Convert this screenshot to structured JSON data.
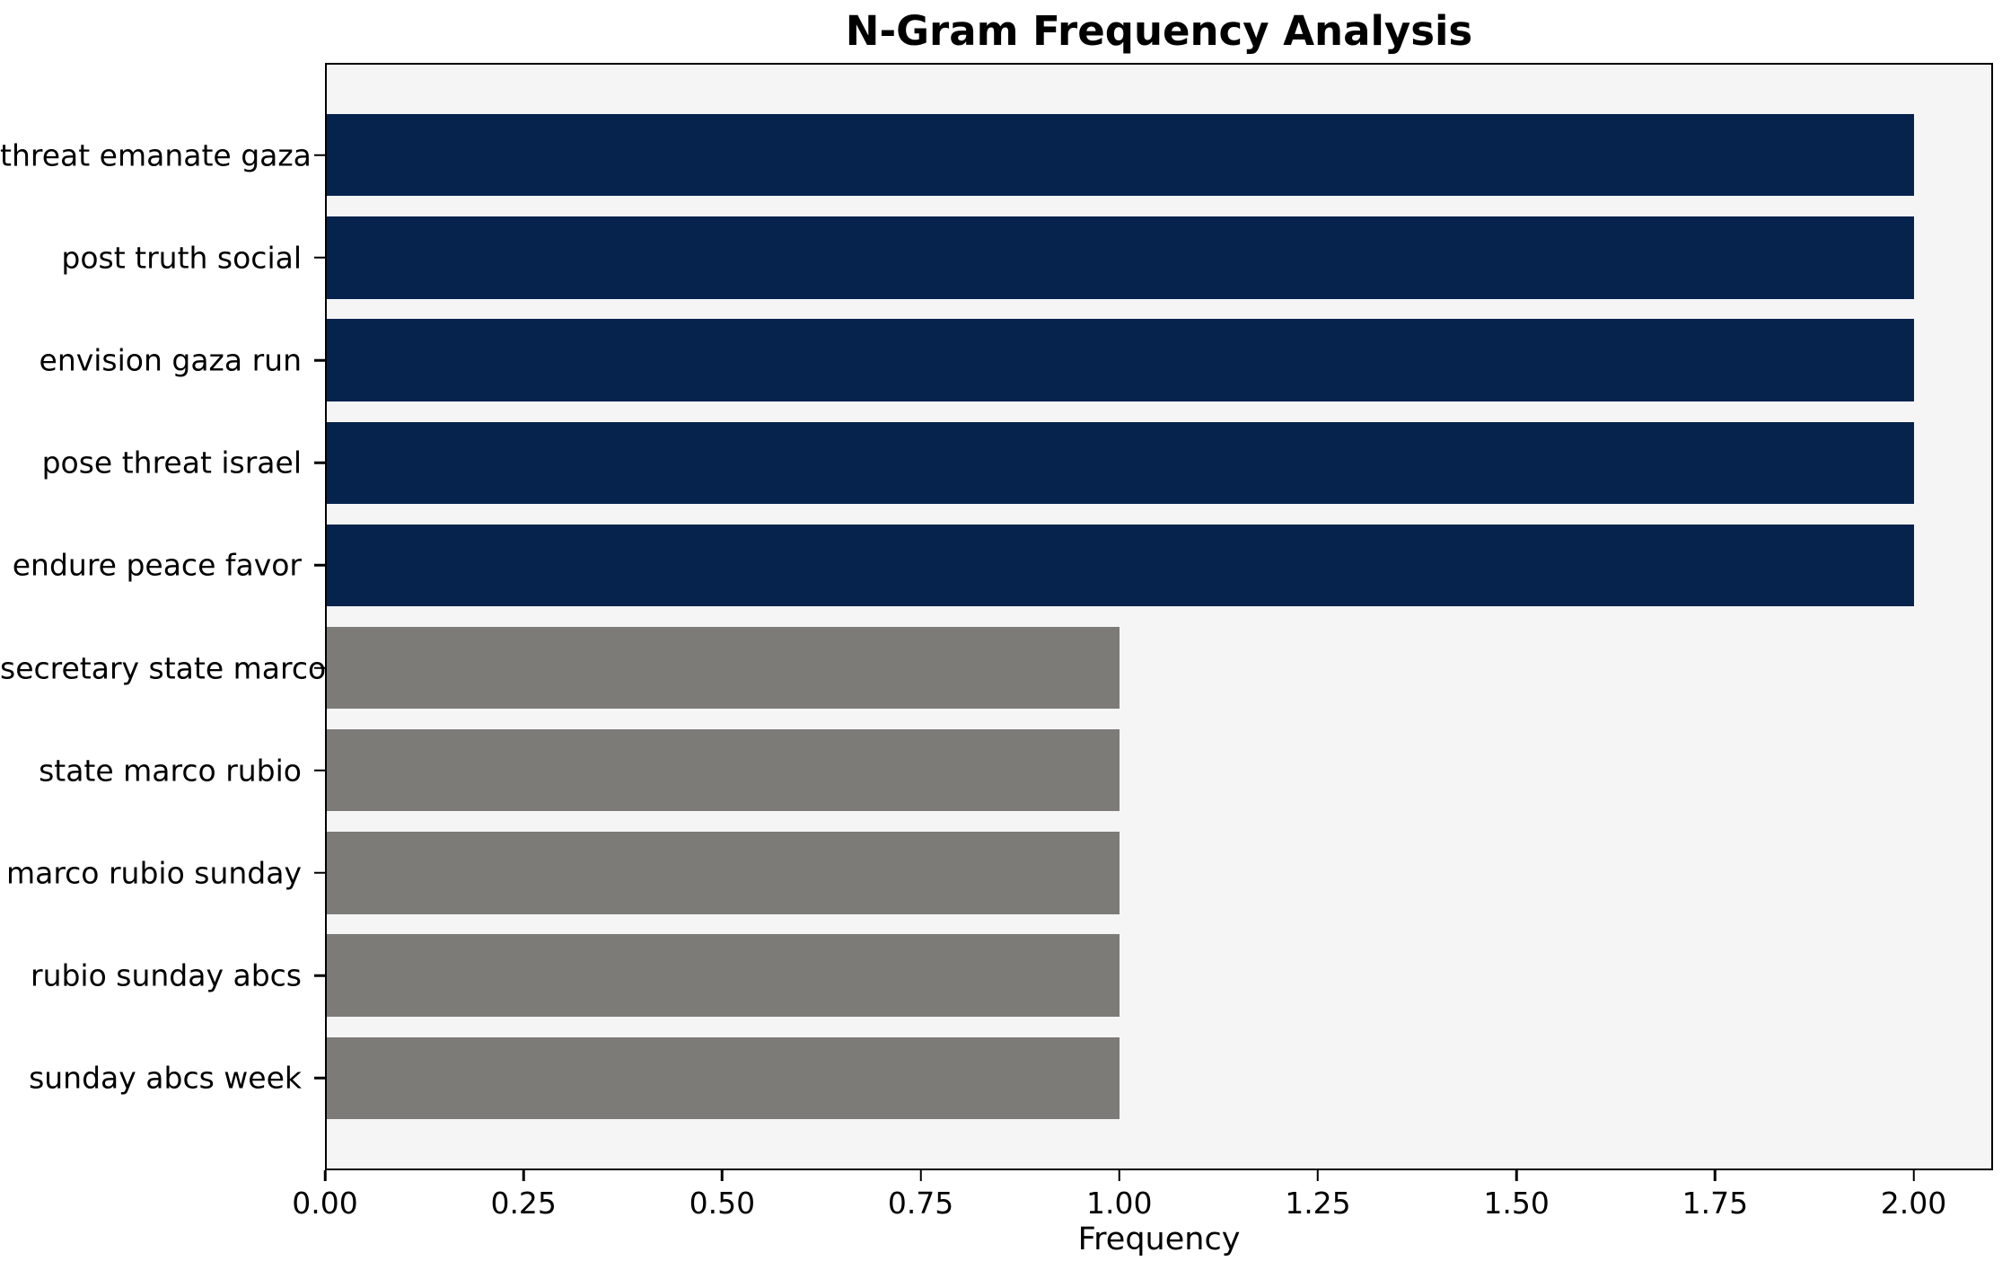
{
  "chart_data": {
    "type": "bar",
    "orientation": "horizontal",
    "title": "N-Gram Frequency Analysis",
    "xlabel": "Frequency",
    "ylabel": "",
    "categories": [
      "threat emanate gaza",
      "post truth social",
      "envision gaza run",
      "pose threat israel",
      "endure peace favor",
      "secretary state marco",
      "state marco rubio",
      "marco rubio sunday",
      "rubio sunday abcs",
      "sunday abcs week"
    ],
    "values": [
      2,
      2,
      2,
      2,
      2,
      1,
      1,
      1,
      1,
      1
    ],
    "bar_colors": [
      "#06234d",
      "#06234d",
      "#06234d",
      "#06234d",
      "#06234d",
      "#7c7b78",
      "#7c7b78",
      "#7c7b78",
      "#7c7b78",
      "#7c7b78"
    ],
    "xlim": [
      0,
      2.1
    ],
    "xticks": [
      {
        "label": "0.00",
        "value": 0.0
      },
      {
        "label": "0.25",
        "value": 0.25
      },
      {
        "label": "0.50",
        "value": 0.5
      },
      {
        "label": "0.75",
        "value": 0.75
      },
      {
        "label": "1.00",
        "value": 1.0
      },
      {
        "label": "1.25",
        "value": 1.25
      },
      {
        "label": "1.50",
        "value": 1.5
      },
      {
        "label": "1.75",
        "value": 1.75
      },
      {
        "label": "2.00",
        "value": 2.0
      }
    ],
    "grid": false,
    "legend": null,
    "colors": {
      "bar_high": "#06234d",
      "bar_low": "#7c7b78",
      "plot_background": "#f5f5f6",
      "figure_background": "#ffffff",
      "text": "#000000",
      "spine": "#000000"
    }
  }
}
